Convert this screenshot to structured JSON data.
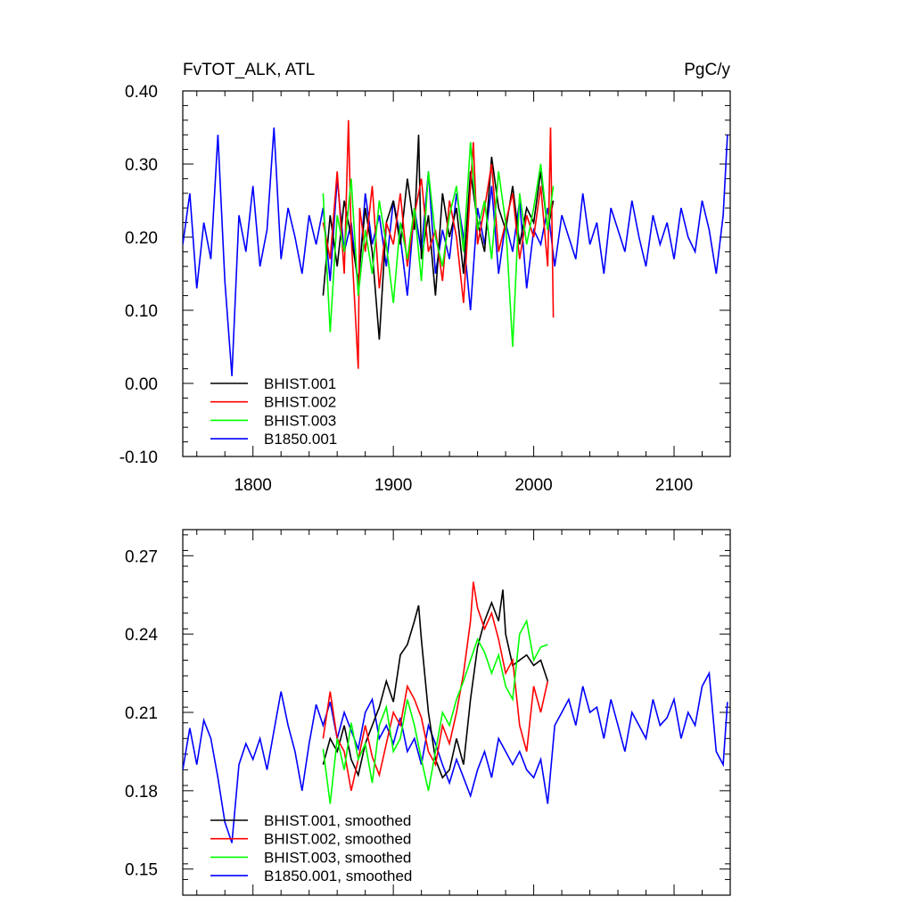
{
  "colors": {
    "BHIST.001": "#000000",
    "BHIST.002": "#ff0000",
    "BHIST.003": "#00ff00",
    "B1850.001": "#0000ff"
  },
  "chart_data": [
    {
      "type": "line",
      "left_title": "FvTOT_ALK, ATL",
      "right_title": "PgC/y",
      "xlim": [
        1750,
        2140
      ],
      "ylim": [
        -0.1,
        0.4
      ],
      "x_ticks": [
        1800,
        1900,
        2000,
        2100
      ],
      "x_tick_labels": [
        "1800",
        "1900",
        "2000",
        "2100"
      ],
      "y_ticks": [
        -0.1,
        0.0,
        0.1,
        0.2,
        0.3,
        0.4
      ],
      "y_tick_labels": [
        "-0.10",
        "0.00",
        "0.10",
        "0.20",
        "0.30",
        "0.40"
      ],
      "legend_position": "bottom-left",
      "series": [
        {
          "name": "BHIST.001",
          "color": "#000000",
          "x": [
            1850,
            1855,
            1860,
            1865,
            1870,
            1875,
            1880,
            1885,
            1890,
            1895,
            1900,
            1905,
            1910,
            1915,
            1918,
            1920,
            1925,
            1930,
            1935,
            1940,
            1945,
            1950,
            1955,
            1960,
            1965,
            1970,
            1975,
            1980,
            1985,
            1990,
            1995,
            2000,
            2005,
            2010,
            2014
          ],
          "y": [
            0.12,
            0.23,
            0.16,
            0.25,
            0.2,
            0.14,
            0.24,
            0.18,
            0.06,
            0.22,
            0.25,
            0.19,
            0.28,
            0.21,
            0.34,
            0.17,
            0.23,
            0.12,
            0.26,
            0.2,
            0.24,
            0.15,
            0.29,
            0.22,
            0.18,
            0.31,
            0.24,
            0.21,
            0.27,
            0.19,
            0.24,
            0.22,
            0.29,
            0.21,
            0.25
          ]
        },
        {
          "name": "BHIST.002",
          "color": "#ff0000",
          "x": [
            1850,
            1855,
            1860,
            1865,
            1868,
            1870,
            1875,
            1876,
            1880,
            1885,
            1890,
            1895,
            1900,
            1905,
            1910,
            1915,
            1920,
            1925,
            1930,
            1935,
            1940,
            1945,
            1950,
            1955,
            1957,
            1960,
            1965,
            1970,
            1975,
            1980,
            1985,
            1990,
            1995,
            2000,
            2005,
            2010,
            2012,
            2014
          ],
          "y": [
            0.22,
            0.17,
            0.29,
            0.15,
            0.36,
            0.2,
            0.02,
            0.24,
            0.18,
            0.27,
            0.13,
            0.22,
            0.19,
            0.26,
            0.16,
            0.23,
            0.28,
            0.18,
            0.21,
            0.14,
            0.25,
            0.2,
            0.11,
            0.27,
            0.33,
            0.19,
            0.24,
            0.3,
            0.18,
            0.22,
            0.26,
            0.17,
            0.23,
            0.2,
            0.27,
            0.16,
            0.35,
            0.09
          ]
        },
        {
          "name": "BHIST.003",
          "color": "#00ff00",
          "x": [
            1850,
            1855,
            1860,
            1865,
            1870,
            1875,
            1880,
            1885,
            1890,
            1895,
            1900,
            1905,
            1910,
            1915,
            1920,
            1925,
            1930,
            1935,
            1940,
            1945,
            1950,
            1955,
            1960,
            1965,
            1970,
            1975,
            1980,
            1985,
            1990,
            1995,
            2000,
            2005,
            2010,
            2014
          ],
          "y": [
            0.26,
            0.07,
            0.23,
            0.18,
            0.28,
            0.12,
            0.21,
            0.15,
            0.25,
            0.19,
            0.11,
            0.22,
            0.17,
            0.24,
            0.14,
            0.29,
            0.2,
            0.16,
            0.23,
            0.27,
            0.18,
            0.33,
            0.21,
            0.25,
            0.17,
            0.29,
            0.22,
            0.05,
            0.26,
            0.19,
            0.24,
            0.3,
            0.21,
            0.27
          ]
        },
        {
          "name": "B1850.001",
          "color": "#0000ff",
          "x": [
            1750,
            1755,
            1760,
            1765,
            1770,
            1775,
            1780,
            1785,
            1790,
            1795,
            1800,
            1805,
            1810,
            1815,
            1820,
            1825,
            1830,
            1835,
            1840,
            1845,
            1850,
            1855,
            1860,
            1865,
            1870,
            1875,
            1880,
            1885,
            1890,
            1895,
            1900,
            1905,
            1910,
            1915,
            1920,
            1925,
            1930,
            1935,
            1940,
            1945,
            1950,
            1955,
            1960,
            1965,
            1970,
            1975,
            1980,
            1985,
            1990,
            1995,
            2000,
            2005,
            2010,
            2015,
            2020,
            2025,
            2030,
            2035,
            2040,
            2045,
            2050,
            2055,
            2060,
            2065,
            2070,
            2075,
            2080,
            2085,
            2090,
            2095,
            2100,
            2105,
            2110,
            2115,
            2120,
            2125,
            2130,
            2135,
            2138
          ],
          "y": [
            0.19,
            0.26,
            0.13,
            0.22,
            0.17,
            0.34,
            0.14,
            0.01,
            0.23,
            0.18,
            0.27,
            0.16,
            0.21,
            0.35,
            0.17,
            0.24,
            0.2,
            0.15,
            0.23,
            0.19,
            0.24,
            0.14,
            0.28,
            0.18,
            0.22,
            0.13,
            0.26,
            0.19,
            0.23,
            0.16,
            0.25,
            0.2,
            0.12,
            0.24,
            0.18,
            0.29,
            0.15,
            0.21,
            0.17,
            0.26,
            0.2,
            0.1,
            0.24,
            0.19,
            0.27,
            0.15,
            0.22,
            0.18,
            0.25,
            0.13,
            0.21,
            0.19,
            0.24,
            0.16,
            0.23,
            0.2,
            0.17,
            0.26,
            0.19,
            0.22,
            0.15,
            0.24,
            0.21,
            0.18,
            0.25,
            0.2,
            0.16,
            0.23,
            0.19,
            0.22,
            0.17,
            0.24,
            0.2,
            0.18,
            0.25,
            0.21,
            0.15,
            0.23,
            0.34
          ]
        }
      ]
    },
    {
      "type": "line",
      "xlim": [
        1750,
        2140
      ],
      "ylim": [
        0.14,
        0.28
      ],
      "x_ticks": [
        1800,
        1900,
        2000,
        2100
      ],
      "y_ticks": [
        0.15,
        0.18,
        0.21,
        0.24,
        0.27
      ],
      "y_tick_labels": [
        "0.15",
        "0.18",
        "0.21",
        "0.24",
        "0.27"
      ],
      "legend_position": "bottom-left",
      "series": [
        {
          "name": "BHIST.001, smoothed",
          "color": "#000000",
          "x": [
            1850,
            1855,
            1860,
            1865,
            1870,
            1875,
            1880,
            1885,
            1890,
            1895,
            1900,
            1905,
            1910,
            1915,
            1918,
            1920,
            1925,
            1930,
            1935,
            1940,
            1945,
            1950,
            1955,
            1960,
            1965,
            1970,
            1975,
            1978,
            1980,
            1985,
            1990,
            1995,
            2000,
            2005,
            2010
          ],
          "y": [
            0.19,
            0.2,
            0.195,
            0.205,
            0.192,
            0.186,
            0.198,
            0.205,
            0.212,
            0.222,
            0.214,
            0.232,
            0.236,
            0.245,
            0.251,
            0.238,
            0.21,
            0.192,
            0.185,
            0.188,
            0.2,
            0.19,
            0.215,
            0.235,
            0.245,
            0.252,
            0.245,
            0.257,
            0.24,
            0.228,
            0.23,
            0.232,
            0.228,
            0.23,
            0.222
          ]
        },
        {
          "name": "BHIST.002, smoothed",
          "color": "#ff0000",
          "x": [
            1850,
            1855,
            1860,
            1865,
            1870,
            1875,
            1880,
            1885,
            1890,
            1895,
            1900,
            1905,
            1910,
            1915,
            1920,
            1925,
            1930,
            1935,
            1940,
            1945,
            1950,
            1955,
            1957,
            1960,
            1965,
            1970,
            1975,
            1980,
            1985,
            1990,
            1995,
            2000,
            2005,
            2010
          ],
          "y": [
            0.2,
            0.218,
            0.2,
            0.195,
            0.18,
            0.192,
            0.205,
            0.193,
            0.186,
            0.198,
            0.21,
            0.205,
            0.22,
            0.215,
            0.208,
            0.195,
            0.19,
            0.205,
            0.198,
            0.21,
            0.225,
            0.245,
            0.26,
            0.25,
            0.242,
            0.248,
            0.238,
            0.225,
            0.23,
            0.205,
            0.195,
            0.22,
            0.21,
            0.222
          ]
        },
        {
          "name": "BHIST.003, smoothed",
          "color": "#00ff00",
          "x": [
            1850,
            1855,
            1860,
            1865,
            1870,
            1875,
            1880,
            1885,
            1890,
            1895,
            1900,
            1905,
            1910,
            1915,
            1920,
            1925,
            1930,
            1935,
            1940,
            1945,
            1950,
            1955,
            1960,
            1965,
            1970,
            1975,
            1980,
            1985,
            1990,
            1995,
            2000,
            2005,
            2010
          ],
          "y": [
            0.196,
            0.175,
            0.2,
            0.188,
            0.206,
            0.192,
            0.198,
            0.183,
            0.205,
            0.212,
            0.195,
            0.2,
            0.215,
            0.205,
            0.192,
            0.18,
            0.195,
            0.21,
            0.205,
            0.215,
            0.222,
            0.23,
            0.238,
            0.233,
            0.225,
            0.232,
            0.22,
            0.215,
            0.24,
            0.245,
            0.23,
            0.235,
            0.236
          ]
        },
        {
          "name": "B1850.001, smoothed",
          "color": "#0000ff",
          "x": [
            1750,
            1755,
            1760,
            1765,
            1770,
            1775,
            1780,
            1785,
            1790,
            1795,
            1800,
            1805,
            1810,
            1815,
            1820,
            1825,
            1830,
            1835,
            1840,
            1845,
            1850,
            1855,
            1860,
            1865,
            1870,
            1875,
            1880,
            1885,
            1890,
            1895,
            1900,
            1905,
            1910,
            1915,
            1920,
            1925,
            1930,
            1935,
            1940,
            1945,
            1950,
            1955,
            1960,
            1965,
            1970,
            1975,
            1980,
            1985,
            1990,
            1995,
            2000,
            2005,
            2010,
            2015,
            2020,
            2025,
            2030,
            2035,
            2040,
            2045,
            2050,
            2055,
            2060,
            2065,
            2070,
            2075,
            2080,
            2085,
            2090,
            2095,
            2100,
            2105,
            2110,
            2115,
            2120,
            2125,
            2130,
            2135,
            2138
          ],
          "y": [
            0.188,
            0.204,
            0.19,
            0.207,
            0.2,
            0.185,
            0.168,
            0.16,
            0.19,
            0.198,
            0.192,
            0.2,
            0.188,
            0.203,
            0.218,
            0.205,
            0.195,
            0.18,
            0.198,
            0.213,
            0.205,
            0.214,
            0.2,
            0.21,
            0.203,
            0.196,
            0.21,
            0.215,
            0.2,
            0.205,
            0.198,
            0.208,
            0.195,
            0.2,
            0.19,
            0.205,
            0.198,
            0.19,
            0.183,
            0.192,
            0.185,
            0.178,
            0.188,
            0.195,
            0.185,
            0.2,
            0.195,
            0.19,
            0.195,
            0.188,
            0.185,
            0.192,
            0.175,
            0.205,
            0.21,
            0.215,
            0.205,
            0.22,
            0.21,
            0.212,
            0.2,
            0.215,
            0.205,
            0.195,
            0.21,
            0.205,
            0.2,
            0.215,
            0.205,
            0.208,
            0.215,
            0.2,
            0.21,
            0.205,
            0.22,
            0.225,
            0.195,
            0.19,
            0.214
          ]
        }
      ]
    }
  ]
}
